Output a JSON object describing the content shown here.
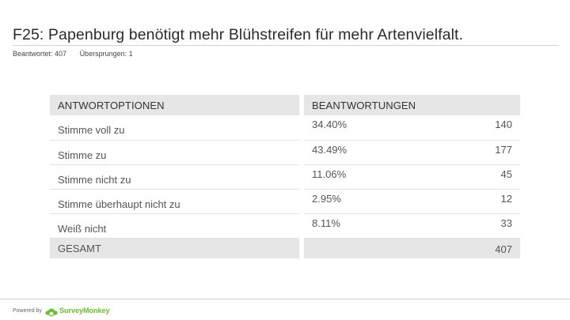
{
  "page": {
    "title": "F25: Papenburg benötigt mehr Blühstreifen für mehr Artenvielfalt.",
    "answered": "Beantwortet: 407",
    "skipped": "Übersprungen: 1"
  },
  "table": {
    "headers": {
      "options": "ANTWORTOPTIONEN",
      "responses": "BEANTWORTUNGEN"
    },
    "rows": [
      {
        "option": "Stimme voll zu",
        "percent": "34.40%",
        "count": "140"
      },
      {
        "option": "Stimme zu",
        "percent": "43.49%",
        "count": "177"
      },
      {
        "option": "Stimme nicht zu",
        "percent": "11.06%",
        "count": "45"
      },
      {
        "option": "Stimme überhaupt nicht zu",
        "percent": "2.95%",
        "count": "12"
      },
      {
        "option": "Weiß nicht",
        "percent": "8.11%",
        "count": "33"
      }
    ],
    "total": {
      "label": "GESAMT",
      "count": "407"
    }
  },
  "footer": {
    "powered_by": "Powered by",
    "brand": "SurveyMonkey",
    "brand_icon": "surveymonkey-logo-icon",
    "brand_color": "#6bbd2e"
  }
}
